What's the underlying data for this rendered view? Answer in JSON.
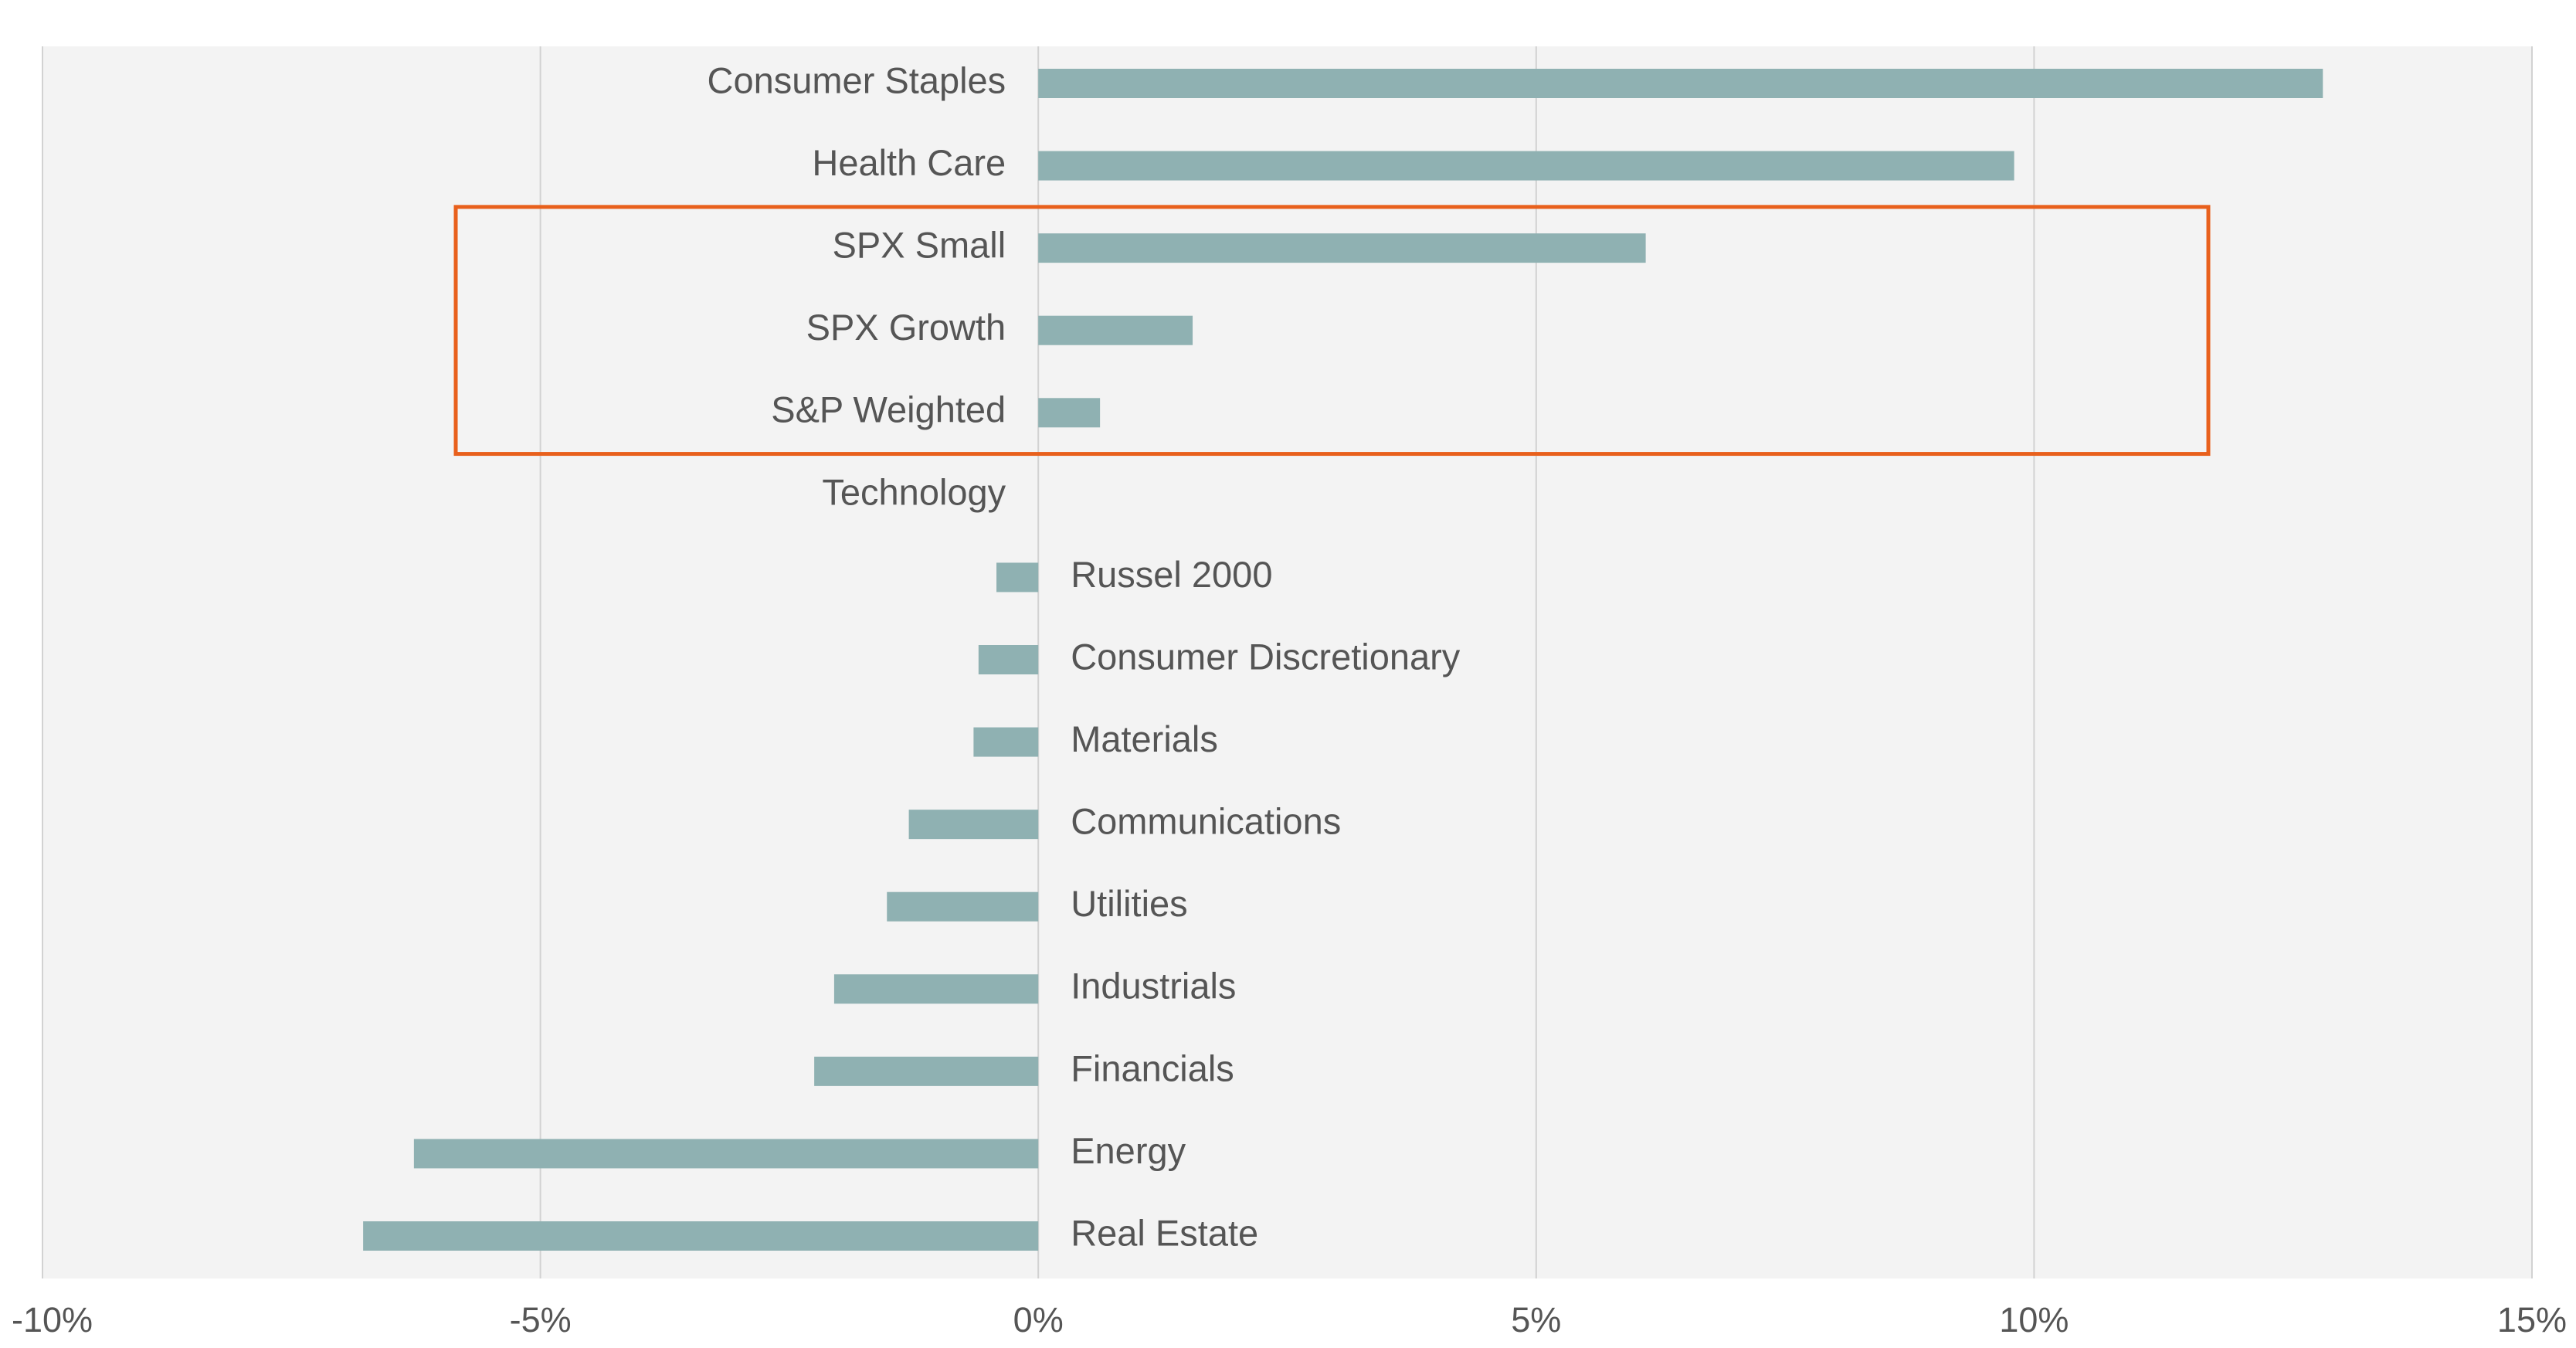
{
  "chart_data": {
    "type": "bar",
    "orientation": "horizontal",
    "title": "",
    "xlabel": "",
    "ylabel": "",
    "categories": [
      "Consumer Staples",
      "Health Care",
      "SPX Small",
      "SPX Growth",
      "S&P Weighted",
      "Technology",
      "Russel 2000",
      "Consumer Discretionary",
      "Materials",
      "Communications",
      "Utilities",
      "Industrials",
      "Financials",
      "Energy",
      "Real Estate"
    ],
    "values": [
      12.9,
      9.8,
      6.1,
      1.55,
      0.62,
      0.0,
      -0.42,
      -0.6,
      -0.65,
      -1.3,
      -1.52,
      -2.05,
      -2.25,
      -6.27,
      -6.78
    ],
    "xlim": [
      -10,
      15
    ],
    "x_ticks": [
      -10,
      -5,
      0,
      5,
      10,
      15
    ],
    "x_tick_labels": [
      "-10%",
      "-5%",
      "0%",
      "5%",
      "10%",
      "15%"
    ],
    "grid": "vertical",
    "legend": "none",
    "highlight": {
      "categories": [
        "SPX Small",
        "SPX Growth",
        "S&P Weighted"
      ],
      "x_range": [
        -5.85,
        11.75
      ],
      "color": "#e8601c"
    },
    "colors": {
      "bar": "#8fb1b2",
      "plot_background": "#f3f3f3",
      "grid": "#d2d2d2",
      "text": "#555555"
    }
  }
}
